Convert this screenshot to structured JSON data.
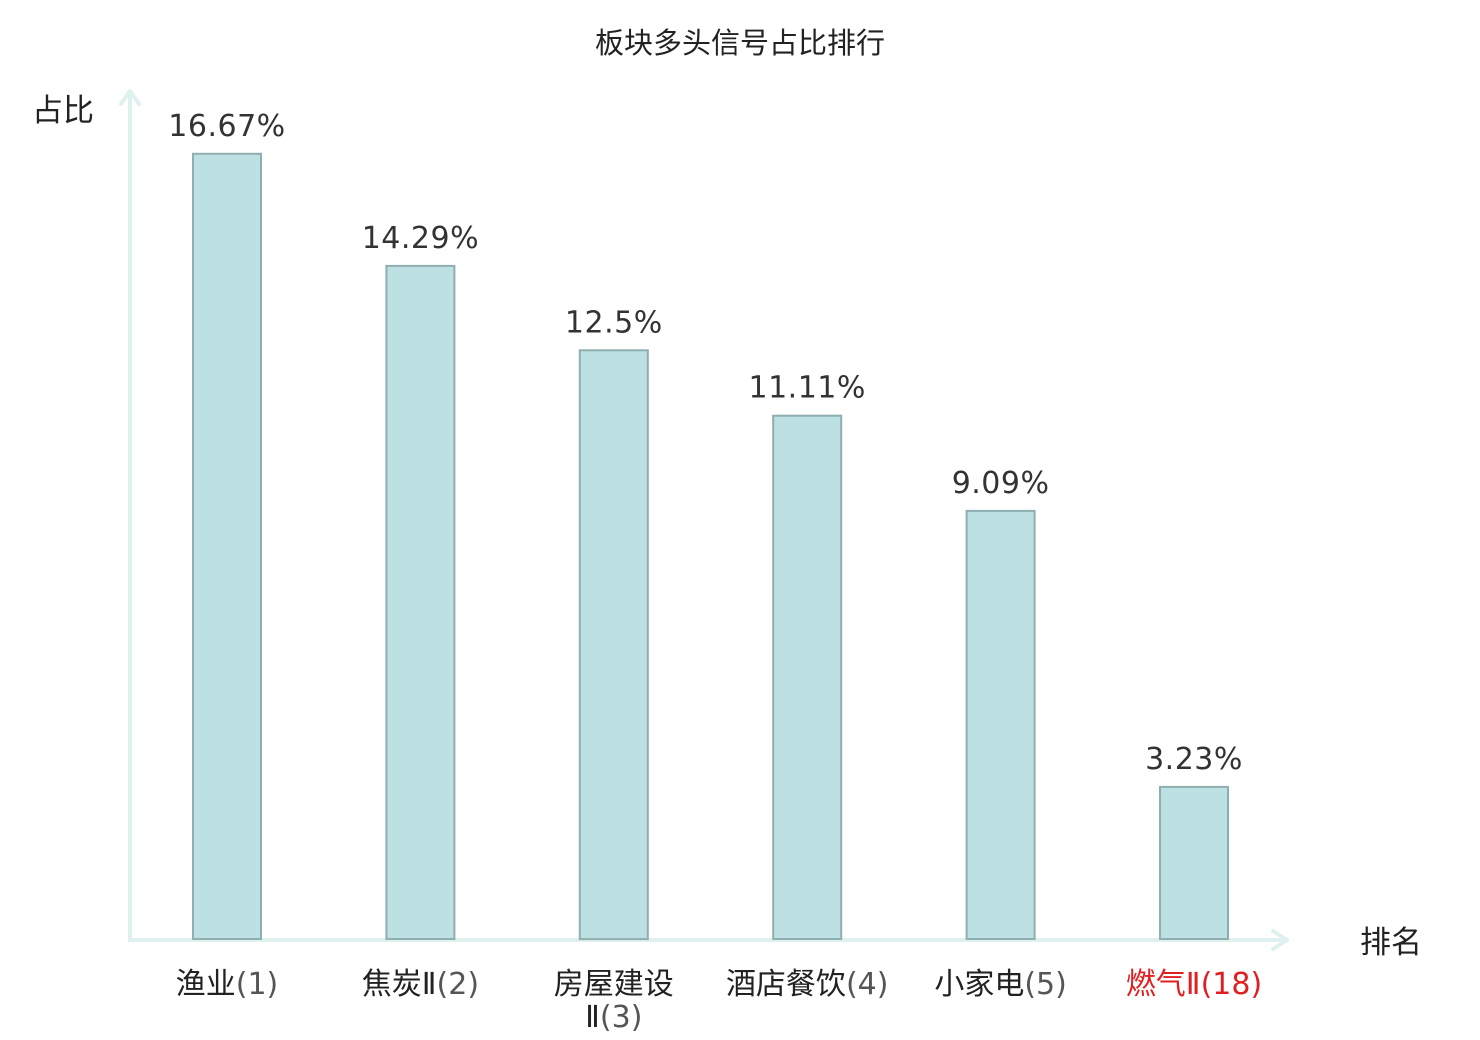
{
  "chart_data": {
    "type": "bar",
    "title": "板块多头信号占比排行",
    "ylabel": "占比",
    "xlabel": "排名",
    "ylim": [
      0,
      18
    ],
    "grid": false,
    "legend": "none",
    "categories": [
      {
        "name": "渔业",
        "rank": "(1)",
        "highlight": false
      },
      {
        "name": "焦炭Ⅱ",
        "rank": "(2)",
        "highlight": false
      },
      {
        "name": "房屋建设",
        "name_line2": "Ⅱ",
        "rank": "(3)",
        "highlight": false
      },
      {
        "name": "酒店餐饮",
        "rank": "(4)",
        "highlight": false
      },
      {
        "name": "小家电",
        "rank": "(5)",
        "highlight": false
      },
      {
        "name": "燃气Ⅱ",
        "rank": "(18)",
        "highlight": true
      }
    ],
    "values": [
      16.67,
      14.29,
      12.5,
      11.11,
      9.09,
      3.23
    ],
    "value_labels": [
      "16.67%",
      "14.29%",
      "12.5%",
      "11.11%",
      "9.09%",
      "3.23%"
    ],
    "colors": {
      "bar_fill": "#bde0e2",
      "bar_stroke": "#8faeb0",
      "axis": "#dff1ef",
      "highlight_text": "#e02020"
    }
  }
}
